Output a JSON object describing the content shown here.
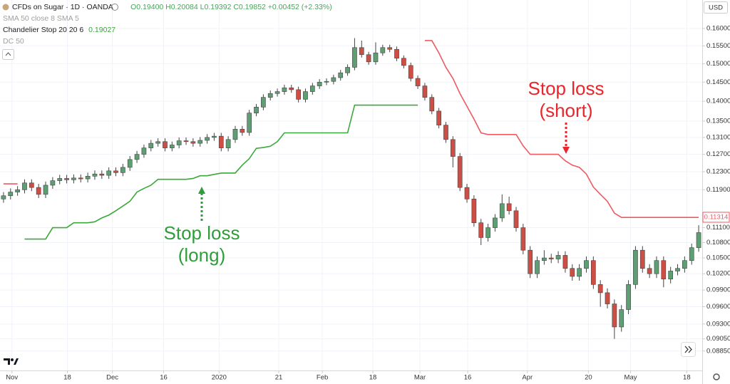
{
  "chart_data": {
    "type": "candlestick",
    "header": {
      "symbol": "CFDs on Sugar · 1D · OANDA",
      "ohlc": "O0.19400 H0.20084 L0.19392 C0.19852 +0.00452 (+2.33%)",
      "study1": "SMA 50 close 8 SMA 5",
      "study2": "Chandelier Stop 20 20 6",
      "study2_value": "0.19027",
      "study3": "DC 50",
      "currency": "USD"
    },
    "annotations": {
      "long_line1": "Stop loss",
      "long_line2": "(long)",
      "short_line1": "Stop loss",
      "short_line2": "(short)"
    },
    "log_scale": true,
    "grid": true,
    "up_color": "#5e9e73",
    "down_color": "#cc4e44",
    "xlim": [
      -0.5,
      99.5
    ],
    "ylim": [
      0.0854,
      0.1686
    ],
    "xticks": [
      {
        "value": 1.2,
        "label": "Nov"
      },
      {
        "value": 9.1,
        "label": "18"
      },
      {
        "value": 15.5,
        "label": "Dec"
      },
      {
        "value": 22.8,
        "label": "16"
      },
      {
        "value": 30.7,
        "label": "2020"
      },
      {
        "value": 39.2,
        "label": "21"
      },
      {
        "value": 45.4,
        "label": "Feb"
      },
      {
        "value": 52.6,
        "label": "18"
      },
      {
        "value": 59.3,
        "label": "Mar"
      },
      {
        "value": 66.1,
        "label": "16"
      },
      {
        "value": 74.6,
        "label": "Apr"
      },
      {
        "value": 83.3,
        "label": "20"
      },
      {
        "value": 89.3,
        "label": "May"
      },
      {
        "value": 97.3,
        "label": "18"
      }
    ],
    "yticks": [
      {
        "value": 0.16,
        "label": "0.16000"
      },
      {
        "value": 0.155,
        "label": "0.15500"
      },
      {
        "value": 0.15,
        "label": "0.15000"
      },
      {
        "value": 0.145,
        "label": "0.14500"
      },
      {
        "value": 0.14,
        "label": "0.14000"
      },
      {
        "value": 0.135,
        "label": "0.13500"
      },
      {
        "value": 0.131,
        "label": "0.13100"
      },
      {
        "value": 0.127,
        "label": "0.12700"
      },
      {
        "value": 0.123,
        "label": "0.12300"
      },
      {
        "value": 0.119,
        "label": "0.11900"
      },
      {
        "value": 0.111,
        "label": "0.11100"
      },
      {
        "value": 0.108,
        "label": "0.10800"
      },
      {
        "value": 0.105,
        "label": "0.10500"
      },
      {
        "value": 0.102,
        "label": "0.10200"
      },
      {
        "value": 0.099,
        "label": "0.09900"
      },
      {
        "value": 0.096,
        "label": "0.09600"
      },
      {
        "value": 0.093,
        "label": "0.09300"
      },
      {
        "value": 0.0905,
        "label": "0.09050"
      },
      {
        "value": 0.0885,
        "label": "0.08850"
      }
    ],
    "last_stop_marker": 0.11314,
    "x": [
      0,
      1,
      2,
      3,
      4,
      5,
      6,
      7,
      8,
      9,
      10,
      11,
      12,
      13,
      14,
      15,
      16,
      17,
      18,
      19,
      20,
      21,
      22,
      23,
      24,
      25,
      26,
      27,
      28,
      29,
      30,
      31,
      32,
      33,
      34,
      35,
      36,
      37,
      38,
      39,
      40,
      41,
      42,
      43,
      44,
      45,
      46,
      47,
      48,
      49,
      50,
      51,
      52,
      53,
      54,
      55,
      56,
      57,
      58,
      59,
      60,
      61,
      62,
      63,
      64,
      65,
      66,
      67,
      68,
      69,
      70,
      71,
      72,
      73,
      74,
      75,
      76,
      77,
      78,
      79,
      80,
      81,
      82,
      83,
      84,
      85,
      86,
      87,
      88,
      89,
      90,
      91,
      92,
      93,
      94,
      95,
      96,
      97,
      98,
      99
    ],
    "open": [
      0.117,
      0.1177,
      0.1185,
      0.119,
      0.1205,
      0.1195,
      0.118,
      0.12,
      0.121,
      0.1215,
      0.1212,
      0.1216,
      0.1214,
      0.122,
      0.1225,
      0.1222,
      0.1232,
      0.1228,
      0.124,
      0.1258,
      0.127,
      0.1285,
      0.1296,
      0.13,
      0.1285,
      0.1292,
      0.1302,
      0.13,
      0.1296,
      0.1303,
      0.131,
      0.1313,
      0.1285,
      0.1305,
      0.133,
      0.1322,
      0.137,
      0.1385,
      0.141,
      0.142,
      0.1425,
      0.1435,
      0.143,
      0.1405,
      0.1425,
      0.144,
      0.145,
      0.1452,
      0.1462,
      0.1475,
      0.149,
      0.1545,
      0.1525,
      0.1505,
      0.153,
      0.1545,
      0.154,
      0.1515,
      0.1495,
      0.146,
      0.144,
      0.141,
      0.1375,
      0.134,
      0.1305,
      0.1265,
      0.1195,
      0.117,
      0.112,
      0.109,
      0.111,
      0.113,
      0.116,
      0.1145,
      0.111,
      0.1065,
      0.102,
      0.1045,
      0.105,
      0.1048,
      0.1055,
      0.103,
      0.1015,
      0.103,
      0.1045,
      0.1,
      0.0985,
      0.0965,
      0.0925,
      0.0955,
      0.1,
      0.1065,
      0.103,
      0.102,
      0.1045,
      0.101,
      0.1025,
      0.103,
      0.1045,
      0.107
    ],
    "high": [
      0.1185,
      0.1193,
      0.1198,
      0.1213,
      0.1213,
      0.1203,
      0.1208,
      0.1218,
      0.1223,
      0.1223,
      0.1224,
      0.1224,
      0.1228,
      0.1233,
      0.1233,
      0.124,
      0.124,
      0.1248,
      0.1266,
      0.1278,
      0.1293,
      0.1304,
      0.1308,
      0.1308,
      0.13,
      0.131,
      0.131,
      0.1308,
      0.1311,
      0.1318,
      0.1321,
      0.1321,
      0.1313,
      0.1338,
      0.1338,
      0.1378,
      0.1393,
      0.1418,
      0.1428,
      0.1433,
      0.1443,
      0.1443,
      0.1438,
      0.1433,
      0.1448,
      0.1458,
      0.146,
      0.147,
      0.1483,
      0.1498,
      0.1572,
      0.1565,
      0.1533,
      0.156,
      0.1553,
      0.1553,
      0.1548,
      0.1523,
      0.1503,
      0.1468,
      0.1448,
      0.1418,
      0.1383,
      0.1348,
      0.1313,
      0.1273,
      0.1203,
      0.1178,
      0.1128,
      0.1118,
      0.1138,
      0.118,
      0.1175,
      0.1153,
      0.1118,
      0.1073,
      0.1053,
      0.1065,
      0.1058,
      0.1063,
      0.1063,
      0.1038,
      0.1038,
      0.1053,
      0.1053,
      0.1008,
      0.0993,
      0.0973,
      0.0963,
      0.1008,
      0.1073,
      0.1073,
      0.1038,
      0.1053,
      0.1053,
      0.1033,
      0.1038,
      0.1053,
      0.1078,
      0.1115
    ],
    "low": [
      0.1162,
      0.1169,
      0.1177,
      0.1182,
      0.1187,
      0.1172,
      0.1172,
      0.1192,
      0.1202,
      0.1204,
      0.1204,
      0.1206,
      0.1206,
      0.1212,
      0.1214,
      0.1214,
      0.122,
      0.122,
      0.1232,
      0.125,
      0.1262,
      0.1277,
      0.1288,
      0.1277,
      0.1277,
      0.1284,
      0.1292,
      0.1288,
      0.1288,
      0.1295,
      0.1302,
      0.1277,
      0.1277,
      0.1297,
      0.1314,
      0.1314,
      0.1362,
      0.1377,
      0.1402,
      0.1412,
      0.1417,
      0.1422,
      0.1397,
      0.1397,
      0.1417,
      0.1432,
      0.1442,
      0.1444,
      0.1454,
      0.1467,
      0.1482,
      0.1517,
      0.1497,
      0.1497,
      0.1522,
      0.1532,
      0.1507,
      0.1487,
      0.1452,
      0.1432,
      0.1402,
      0.1367,
      0.1332,
      0.1297,
      0.124,
      0.1187,
      0.1162,
      0.1112,
      0.1075,
      0.1082,
      0.1102,
      0.1122,
      0.1137,
      0.1102,
      0.1057,
      0.1012,
      0.1012,
      0.1037,
      0.104,
      0.104,
      0.1022,
      0.1007,
      0.1007,
      0.1022,
      0.0992,
      0.096,
      0.0957,
      0.0905,
      0.0917,
      0.0947,
      0.0992,
      0.1022,
      0.1012,
      0.1012,
      0.0995,
      0.1002,
      0.1017,
      0.1022,
      0.1037,
      0.1062
    ],
    "close": [
      0.1177,
      0.1185,
      0.119,
      0.1205,
      0.1195,
      0.118,
      0.12,
      0.121,
      0.1215,
      0.1212,
      0.1216,
      0.1214,
      0.122,
      0.1225,
      0.1222,
      0.1232,
      0.1228,
      0.124,
      0.1258,
      0.127,
      0.1285,
      0.1296,
      0.13,
      0.1285,
      0.1292,
      0.1302,
      0.13,
      0.1296,
      0.1303,
      0.131,
      0.1313,
      0.1285,
      0.1305,
      0.133,
      0.1322,
      0.137,
      0.1385,
      0.141,
      0.142,
      0.1425,
      0.1435,
      0.143,
      0.1405,
      0.1425,
      0.144,
      0.145,
      0.1452,
      0.1462,
      0.1475,
      0.149,
      0.1545,
      0.1525,
      0.1505,
      0.153,
      0.1545,
      0.154,
      0.1515,
      0.1495,
      0.146,
      0.144,
      0.141,
      0.1375,
      0.134,
      0.1305,
      0.1265,
      0.1195,
      0.117,
      0.112,
      0.109,
      0.111,
      0.113,
      0.116,
      0.1145,
      0.111,
      0.1065,
      0.102,
      0.1045,
      0.105,
      0.1048,
      0.1055,
      0.103,
      0.1015,
      0.103,
      0.1045,
      0.1,
      0.0985,
      0.0965,
      0.0925,
      0.0955,
      0.1,
      0.1065,
      0.103,
      0.102,
      0.1045,
      0.101,
      0.1025,
      0.103,
      0.1045,
      0.107,
      0.11
    ],
    "long_stop": {
      "color": "#3aa83a",
      "values": [
        null,
        null,
        null,
        0.1087,
        0.1087,
        0.1087,
        0.1087,
        0.111,
        0.111,
        0.111,
        0.112,
        0.112,
        0.112,
        0.1122,
        0.113,
        0.1136,
        0.1145,
        0.1155,
        0.1165,
        0.1185,
        0.1193,
        0.12,
        0.1213,
        0.1213,
        0.1213,
        0.1213,
        0.1213,
        0.1215,
        0.1221,
        0.1221,
        0.1224,
        0.1227,
        0.1227,
        0.1227,
        0.1245,
        0.126,
        0.1284,
        0.1286,
        0.1289,
        0.13,
        0.1321,
        0.1321,
        0.1321,
        0.1321,
        0.1321,
        0.1321,
        0.1321,
        0.1321,
        0.1321,
        0.1321,
        0.139,
        0.139,
        0.139,
        0.139,
        0.139,
        0.139,
        0.139,
        0.139,
        0.139,
        0.139,
        null,
        null,
        null,
        null,
        null,
        null,
        null,
        null,
        null,
        null,
        null,
        null,
        null,
        null,
        null,
        null,
        null,
        null,
        null,
        null,
        null,
        null,
        null,
        null,
        null,
        null,
        null,
        null,
        null,
        null,
        null,
        null,
        null,
        null,
        null,
        null,
        null,
        null,
        null,
        null
      ]
    },
    "short_stop": {
      "color": "#ee5a62",
      "values": [
        0.1203,
        0.1203,
        0.1203,
        null,
        null,
        null,
        null,
        null,
        null,
        null,
        null,
        null,
        null,
        null,
        null,
        null,
        null,
        null,
        null,
        null,
        null,
        null,
        null,
        null,
        null,
        null,
        null,
        null,
        null,
        null,
        null,
        null,
        null,
        null,
        null,
        null,
        null,
        null,
        null,
        null,
        null,
        null,
        null,
        null,
        null,
        null,
        null,
        null,
        null,
        null,
        null,
        null,
        null,
        null,
        null,
        null,
        null,
        null,
        null,
        null,
        0.1565,
        0.1565,
        0.153,
        0.149,
        0.146,
        0.142,
        0.1387,
        0.1355,
        0.1321,
        0.1317,
        0.1317,
        0.1317,
        0.1317,
        0.1317,
        0.129,
        0.127,
        0.127,
        0.127,
        0.127,
        0.127,
        0.1255,
        0.1245,
        0.124,
        0.1225,
        0.1196,
        0.118,
        0.1165,
        0.114,
        0.1131,
        0.1131,
        0.1131,
        0.1131,
        0.1131,
        0.1131,
        0.1131,
        0.1131,
        0.1131,
        0.1131,
        0.1131,
        0.1131,
        0.1131
      ]
    }
  }
}
